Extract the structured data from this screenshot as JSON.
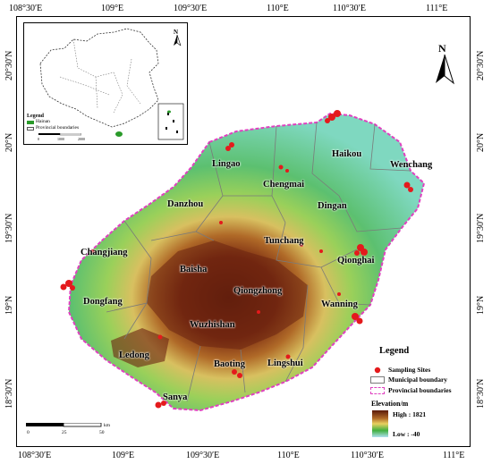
{
  "axes": {
    "top": [
      "108°30′E",
      "109°E",
      "109°30′E",
      "110°E",
      "110°30′E",
      "111°E"
    ],
    "bottom": [
      "108°30′E",
      "109°E",
      "109°30′E",
      "110°E",
      "110°30′E",
      "111°E"
    ],
    "left": [
      "20°30′N",
      "20°N",
      "19°30′N",
      "19°N",
      "18°30′N"
    ],
    "right": [
      "20°30′N",
      "20°N",
      "19°30′N",
      "19°N",
      "18°30′N"
    ]
  },
  "cities": {
    "lingao": "Lingao",
    "haikou": "Haikou",
    "wenchang": "Wenchang",
    "chengmai": "Chengmai",
    "danzhou": "Danzhou",
    "dingan": "Dingan",
    "tunchang": "Tunchang",
    "changjiang": "Changjiang",
    "baisha": "Baisha",
    "qionghai": "Qionghai",
    "qiongzhong": "Qiongzhong",
    "dongfang": "Dongfang",
    "wanning": "Wanning",
    "wuzhishan": "Wuzhishan",
    "ledong": "Ledong",
    "baoting": "Baoting",
    "lingshui": "Lingshui",
    "sanya": "Sanya"
  },
  "legend": {
    "title": "Legend",
    "sampling": "Sampling Sites",
    "municipal": "Municipal boundary",
    "provincial": "Provincial boundaries",
    "elevation_title": "Elevation/m",
    "high": "High : 1821",
    "low": "Low : -40"
  },
  "inset": {
    "north": "N",
    "legend_title": "Legend",
    "hainan": "Hainan",
    "provincial": "Provincial boundaries",
    "scale": [
      "0",
      "1000",
      "2000"
    ]
  },
  "north": "N",
  "scale": {
    "labels": [
      "0",
      "25",
      "50"
    ],
    "unit": "km"
  },
  "colors": {
    "high": "#5a1a0a",
    "mid": "#c8a040",
    "low": "#30a848",
    "sea": "#ffffff",
    "sites": "#e41a1c",
    "provincial": "#e040c0"
  }
}
